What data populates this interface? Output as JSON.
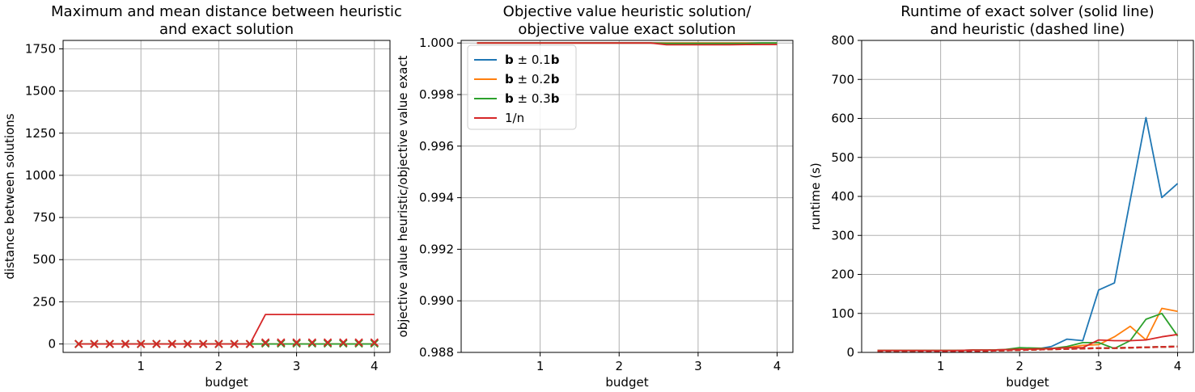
{
  "chart_data": [
    {
      "type": "line",
      "title_line1": "Maximum and mean distance between heuristic",
      "title_line2": "and exact solution",
      "xlabel": "budget",
      "ylabel": "distance between solutions",
      "xlim": [
        0.0,
        4.2
      ],
      "ylim": [
        -50,
        1800
      ],
      "xticks": [
        1,
        2,
        3,
        4
      ],
      "xtick_labels": [
        "1",
        "2",
        "3",
        "4"
      ],
      "yticks": [
        0,
        250,
        500,
        750,
        1000,
        1250,
        1500,
        1750
      ],
      "ytick_labels": [
        "0",
        "250",
        "500",
        "750",
        "1000",
        "1250",
        "1500",
        "1750"
      ],
      "grid": true,
      "x": [
        0.2,
        0.4,
        0.6,
        0.8,
        1.0,
        1.2,
        1.4,
        1.6,
        1.8,
        2.0,
        2.2,
        2.4,
        2.6,
        2.8,
        3.0,
        3.2,
        3.4,
        3.6,
        3.8,
        4.0
      ],
      "series": [
        {
          "color": "#1f77b4",
          "style": "solid",
          "values": [
            0,
            0,
            0,
            0,
            0,
            0,
            0,
            0,
            0,
            0,
            0,
            0,
            0,
            0,
            0,
            0,
            0,
            0,
            0,
            0
          ]
        },
        {
          "color": "#ff7f0e",
          "style": "solid",
          "values": [
            0,
            0,
            0,
            0,
            0,
            0,
            0,
            0,
            0,
            0,
            0,
            0,
            0,
            0,
            0,
            0,
            0,
            0,
            0,
            0
          ]
        },
        {
          "color": "#2ca02c",
          "style": "solid",
          "values": [
            0,
            0,
            0,
            0,
            0,
            0,
            0,
            0,
            0,
            0,
            0,
            0,
            0,
            0,
            0,
            0,
            0,
            0,
            0,
            0
          ]
        },
        {
          "color": "#d62728",
          "style": "solid",
          "values": [
            0,
            0,
            0,
            0,
            0,
            0,
            0,
            0,
            0,
            0,
            0,
            0,
            175,
            175,
            175,
            175,
            175,
            175,
            175,
            175
          ]
        },
        {
          "color": "#1f77b4",
          "style": "x-marker",
          "values": [
            0,
            0,
            0,
            0,
            0,
            0,
            0,
            0,
            0,
            0,
            0,
            0,
            3,
            3,
            3,
            3,
            3,
            3,
            3,
            3
          ]
        },
        {
          "color": "#ff7f0e",
          "style": "x-marker",
          "values": [
            0,
            0,
            0,
            0,
            0,
            0,
            0,
            0,
            0,
            0,
            0,
            0,
            3,
            3,
            3,
            3,
            3,
            3,
            3,
            3
          ]
        },
        {
          "color": "#2ca02c",
          "style": "x-marker",
          "values": [
            0,
            0,
            0,
            0,
            0,
            0,
            0,
            0,
            0,
            0,
            0,
            0,
            3,
            3,
            3,
            3,
            3,
            3,
            3,
            3
          ]
        },
        {
          "color": "#d62728",
          "style": "x-marker",
          "values": [
            0,
            0,
            0,
            0,
            0,
            0,
            0,
            0,
            0,
            0,
            0,
            0,
            9,
            9,
            9,
            9,
            9,
            9,
            9,
            9
          ]
        }
      ]
    },
    {
      "type": "line",
      "title_line1": "Objective value heuristic solution/",
      "title_line2": "objective value exact solution",
      "xlabel": "budget",
      "ylabel": "objective value heuristic/objective value exact",
      "xlim": [
        0.0,
        4.2
      ],
      "ylim": [
        0.988,
        1.0001
      ],
      "xticks": [
        1,
        2,
        3,
        4
      ],
      "xtick_labels": [
        "1",
        "2",
        "3",
        "4"
      ],
      "yticks": [
        0.988,
        0.99,
        0.992,
        0.994,
        0.996,
        0.998,
        1.0
      ],
      "ytick_labels": [
        "0.988",
        "0.990",
        "0.992",
        "0.994",
        "0.996",
        "0.998",
        "1.000"
      ],
      "grid": true,
      "legend_position": "upper-left",
      "x": [
        0.2,
        0.4,
        0.6,
        0.8,
        1.0,
        1.2,
        1.4,
        1.6,
        1.8,
        2.0,
        2.2,
        2.4,
        2.6,
        2.8,
        3.0,
        3.2,
        3.4,
        3.6,
        3.8,
        4.0
      ],
      "series": [
        {
          "name_prefix": "b",
          "name_mid": " ± 0.1",
          "name_suffix": "b",
          "color": "#1f77b4",
          "values": [
            1,
            1,
            1,
            1,
            1,
            1,
            1,
            1,
            1,
            1,
            1,
            1,
            1,
            1,
            1,
            1,
            1,
            1,
            1,
            1
          ]
        },
        {
          "name_prefix": "b",
          "name_mid": " ± 0.2",
          "name_suffix": "b",
          "color": "#ff7f0e",
          "values": [
            1,
            1,
            1,
            1,
            1,
            1,
            1,
            1,
            1,
            1,
            1,
            1,
            1,
            1,
            1,
            1,
            1,
            1,
            1,
            1
          ]
        },
        {
          "name_prefix": "b",
          "name_mid": " ± 0.3",
          "name_suffix": "b",
          "color": "#2ca02c",
          "values": [
            1,
            1,
            1,
            1,
            1,
            1,
            1,
            1,
            1,
            1,
            1,
            1,
            0.99998,
            0.99998,
            0.99998,
            0.99998,
            0.99998,
            0.99998,
            1,
            1
          ]
        },
        {
          "name_prefix": "",
          "name_mid": "1/n",
          "name_suffix": "",
          "color": "#d62728",
          "values": [
            1,
            1,
            1,
            1,
            1,
            1,
            1,
            1,
            1,
            1,
            1,
            1,
            0.99993,
            0.99993,
            0.99993,
            0.99993,
            0.99993,
            0.99994,
            0.99994,
            0.99994
          ]
        }
      ]
    },
    {
      "type": "line",
      "title_line1": "Runtime of exact solver (solid line)",
      "title_line2": "and heuristic (dashed line)",
      "xlabel": "budget",
      "ylabel": "runtime (s)",
      "xlim": [
        0.0,
        4.2
      ],
      "ylim": [
        0,
        800
      ],
      "xticks": [
        1,
        2,
        3,
        4
      ],
      "xtick_labels": [
        "1",
        "2",
        "3",
        "4"
      ],
      "yticks": [
        0,
        100,
        200,
        300,
        400,
        500,
        600,
        700,
        800
      ],
      "ytick_labels": [
        "0",
        "100",
        "200",
        "300",
        "400",
        "500",
        "600",
        "700",
        "800"
      ],
      "grid": true,
      "x": [
        0.2,
        0.4,
        0.6,
        0.8,
        1.0,
        1.2,
        1.4,
        1.6,
        1.8,
        2.0,
        2.2,
        2.4,
        2.6,
        2.8,
        3.0,
        3.2,
        3.4,
        3.6,
        3.8,
        4.0
      ],
      "series": [
        {
          "color": "#1f77b4",
          "style": "solid",
          "values": [
            5,
            5,
            5,
            5,
            5,
            5,
            6,
            6,
            7,
            8,
            8,
            15,
            34,
            30,
            160,
            178,
            390,
            602,
            397,
            433
          ]
        },
        {
          "color": "#ff7f0e",
          "style": "solid",
          "values": [
            5,
            5,
            5,
            5,
            5,
            5,
            6,
            6,
            7,
            8,
            8,
            10,
            12,
            18,
            20,
            40,
            67,
            32,
            113,
            105
          ]
        },
        {
          "color": "#2ca02c",
          "style": "solid",
          "values": [
            5,
            5,
            5,
            5,
            5,
            5,
            6,
            6,
            7,
            12,
            11,
            10,
            15,
            25,
            25,
            10,
            30,
            85,
            100,
            42
          ]
        },
        {
          "color": "#d62728",
          "style": "solid",
          "values": [
            5,
            5,
            5,
            5,
            5,
            5,
            6,
            6,
            7,
            8,
            9,
            10,
            12,
            12,
            32,
            30,
            30,
            32,
            40,
            46
          ]
        },
        {
          "color": "#1f77b4",
          "style": "dashed",
          "values": [
            1,
            1,
            1,
            2,
            2,
            3,
            3,
            4,
            5,
            6,
            7,
            8,
            9,
            10,
            11,
            11,
            12,
            13,
            14,
            15
          ]
        },
        {
          "color": "#ff7f0e",
          "style": "dashed",
          "values": [
            1,
            1,
            1,
            2,
            2,
            3,
            3,
            4,
            5,
            6,
            7,
            8,
            9,
            10,
            11,
            11,
            12,
            13,
            14,
            15
          ]
        },
        {
          "color": "#2ca02c",
          "style": "dashed",
          "values": [
            1,
            1,
            1,
            2,
            2,
            3,
            3,
            4,
            5,
            6,
            7,
            8,
            9,
            10,
            11,
            11,
            12,
            13,
            14,
            15
          ]
        },
        {
          "color": "#d62728",
          "style": "dashed",
          "values": [
            1,
            1,
            1,
            2,
            2,
            3,
            3,
            4,
            5,
            6,
            7,
            8,
            9,
            10,
            11,
            11,
            12,
            13,
            14,
            15
          ]
        }
      ]
    }
  ]
}
